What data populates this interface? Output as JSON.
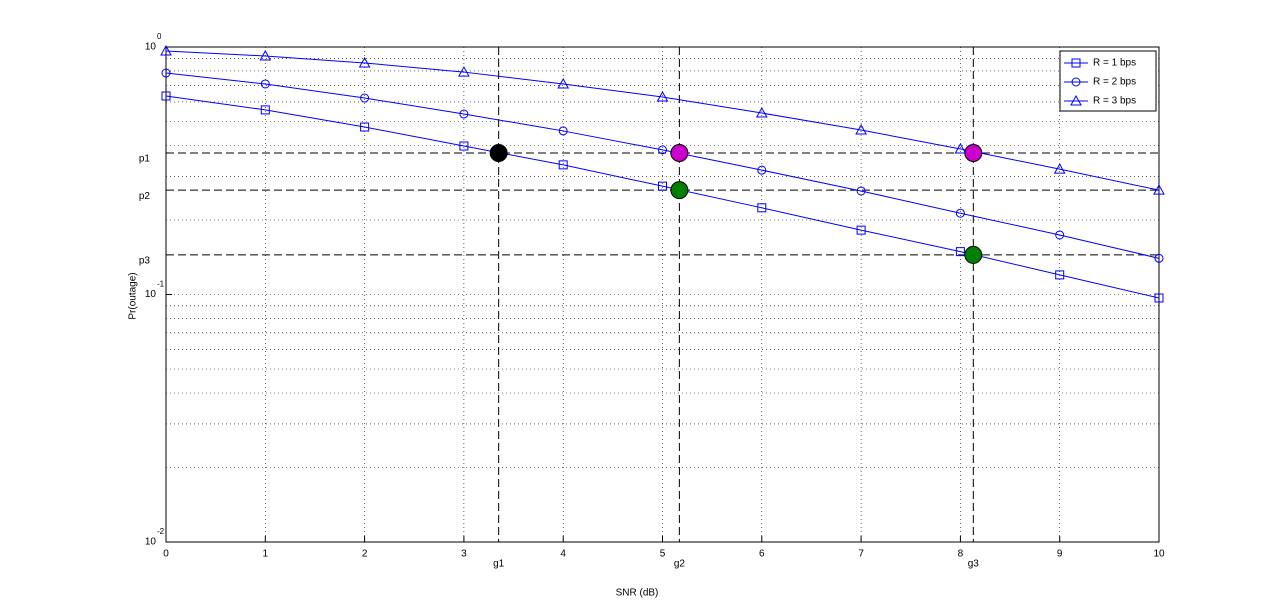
{
  "chart_data": {
    "type": "line",
    "xlabel": "SNR (dB)",
    "ylabel": "Pr(outage)",
    "x": [
      0,
      1,
      2,
      3,
      4,
      5,
      6,
      7,
      8,
      9,
      10
    ],
    "series": [
      {
        "name": "R = 1 bps",
        "color": "#0000ff",
        "marker": "square",
        "values": [
          0.634,
          0.557,
          0.475,
          0.398,
          0.334,
          0.274,
          0.224,
          0.182,
          0.149,
          0.12,
          0.0968
        ]
      },
      {
        "name": "R = 2 bps",
        "color": "#0000ff",
        "marker": "circle",
        "values": [
          0.785,
          0.709,
          0.622,
          0.536,
          0.458,
          0.384,
          0.318,
          0.262,
          0.213,
          0.174,
          0.14
        ]
      },
      {
        "name": "R = 3 bps",
        "color": "#0000ff",
        "marker": "triangle",
        "values": [
          0.963,
          0.92,
          0.862,
          0.792,
          0.709,
          0.628,
          0.541,
          0.462,
          0.387,
          0.321,
          0.264
        ]
      }
    ],
    "xlim": [
      0,
      10
    ],
    "xticks": [
      0,
      1,
      2,
      3,
      4,
      5,
      6,
      7,
      8,
      9,
      10
    ],
    "ylim": [
      0.01,
      1
    ],
    "log_y": true,
    "yticks": [
      {
        "value": 0.01,
        "label": "10",
        "exponent": "-2"
      },
      {
        "value": 0.1,
        "label": "10",
        "exponent": "-1"
      },
      {
        "value": 1,
        "label": "10",
        "exponent": "0"
      }
    ],
    "yminor": [
      0.02,
      0.03,
      0.04,
      0.05,
      0.06,
      0.07,
      0.08,
      0.09,
      0.2,
      0.3,
      0.4,
      0.5,
      0.6,
      0.7,
      0.8,
      0.9
    ],
    "grid": true,
    "legend": "upper right",
    "hlines": [
      {
        "label": "p1",
        "value": 0.373
      },
      {
        "label": "p2",
        "value": 0.264
      },
      {
        "label": "p3",
        "value": 0.1445
      }
    ],
    "vlines": [
      {
        "label": "g1",
        "value": 3.35
      },
      {
        "label": "g2",
        "value": 5.17
      },
      {
        "label": "g3",
        "value": 8.13
      }
    ],
    "points": [
      {
        "x": 3.35,
        "y": 0.373,
        "color": "#000000"
      },
      {
        "x": 5.17,
        "y": 0.373,
        "color": "#cc00cc"
      },
      {
        "x": 8.13,
        "y": 0.373,
        "color": "#cc00cc"
      },
      {
        "x": 5.17,
        "y": 0.264,
        "color": "#008000"
      },
      {
        "x": 8.13,
        "y": 0.1445,
        "color": "#008000"
      }
    ]
  }
}
